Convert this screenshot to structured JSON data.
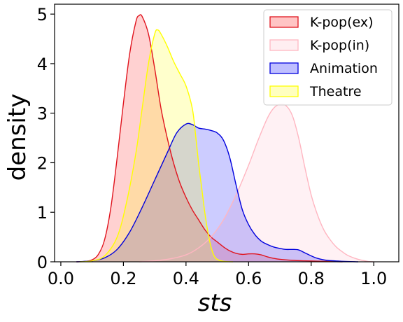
{
  "chart_data": {
    "type": "area",
    "xlabel": "sts",
    "ylabel": "density",
    "xlim": [
      -0.02,
      1.08
    ],
    "ylim": [
      0,
      5.2
    ],
    "xticks": [
      "0.0",
      "0.2",
      "0.4",
      "0.6",
      "0.8",
      "1.0"
    ],
    "yticks": [
      "0",
      "1",
      "2",
      "3",
      "4",
      "5"
    ],
    "grid": false,
    "legend_position": "top-right",
    "series": [
      {
        "name": "K-pop(ex)",
        "line_color": "#e0141e",
        "fill_color": "#ff0000",
        "fill_opacity": 0.18,
        "points": [
          [
            0.05,
            0
          ],
          [
            0.08,
            0.01
          ],
          [
            0.1,
            0.04
          ],
          [
            0.12,
            0.15
          ],
          [
            0.14,
            0.45
          ],
          [
            0.16,
            1.1
          ],
          [
            0.18,
            2.1
          ],
          [
            0.2,
            3.2
          ],
          [
            0.22,
            4.2
          ],
          [
            0.24,
            4.85
          ],
          [
            0.25,
            4.97
          ],
          [
            0.26,
            4.95
          ],
          [
            0.28,
            4.6
          ],
          [
            0.3,
            3.9
          ],
          [
            0.32,
            3.1
          ],
          [
            0.34,
            2.5
          ],
          [
            0.36,
            2.0
          ],
          [
            0.38,
            1.6
          ],
          [
            0.4,
            1.3
          ],
          [
            0.42,
            1.05
          ],
          [
            0.44,
            0.85
          ],
          [
            0.46,
            0.65
          ],
          [
            0.48,
            0.5
          ],
          [
            0.5,
            0.4
          ],
          [
            0.52,
            0.3
          ],
          [
            0.54,
            0.22
          ],
          [
            0.56,
            0.17
          ],
          [
            0.58,
            0.15
          ],
          [
            0.6,
            0.16
          ],
          [
            0.62,
            0.16
          ],
          [
            0.64,
            0.14
          ],
          [
            0.66,
            0.1
          ],
          [
            0.68,
            0.07
          ],
          [
            0.7,
            0.05
          ],
          [
            0.74,
            0.03
          ],
          [
            0.78,
            0.02
          ],
          [
            0.84,
            0.01
          ],
          [
            0.9,
            0
          ]
        ]
      },
      {
        "name": "K-pop(in)",
        "line_color": "#ffb6c1",
        "fill_color": "#ffc0cb",
        "fill_opacity": 0.22,
        "points": [
          [
            0.25,
            0
          ],
          [
            0.3,
            0.02
          ],
          [
            0.35,
            0.06
          ],
          [
            0.4,
            0.14
          ],
          [
            0.44,
            0.28
          ],
          [
            0.48,
            0.5
          ],
          [
            0.52,
            0.85
          ],
          [
            0.56,
            1.35
          ],
          [
            0.6,
            1.95
          ],
          [
            0.63,
            2.45
          ],
          [
            0.66,
            2.9
          ],
          [
            0.68,
            3.1
          ],
          [
            0.7,
            3.18
          ],
          [
            0.72,
            3.15
          ],
          [
            0.74,
            2.95
          ],
          [
            0.76,
            2.5
          ],
          [
            0.78,
            1.9
          ],
          [
            0.8,
            1.35
          ],
          [
            0.82,
            0.95
          ],
          [
            0.84,
            0.65
          ],
          [
            0.86,
            0.45
          ],
          [
            0.88,
            0.3
          ],
          [
            0.9,
            0.2
          ],
          [
            0.92,
            0.12
          ],
          [
            0.95,
            0.05
          ],
          [
            0.98,
            0.01
          ],
          [
            1.0,
            0
          ]
        ]
      },
      {
        "name": "Animation",
        "line_color": "#0000dd",
        "fill_color": "#0000ff",
        "fill_opacity": 0.2,
        "points": [
          [
            0.05,
            0
          ],
          [
            0.1,
            0.02
          ],
          [
            0.14,
            0.08
          ],
          [
            0.18,
            0.25
          ],
          [
            0.22,
            0.6
          ],
          [
            0.26,
            1.1
          ],
          [
            0.3,
            1.65
          ],
          [
            0.34,
            2.2
          ],
          [
            0.37,
            2.6
          ],
          [
            0.4,
            2.78
          ],
          [
            0.42,
            2.77
          ],
          [
            0.44,
            2.7
          ],
          [
            0.46,
            2.68
          ],
          [
            0.48,
            2.65
          ],
          [
            0.5,
            2.6
          ],
          [
            0.52,
            2.45
          ],
          [
            0.54,
            2.1
          ],
          [
            0.56,
            1.55
          ],
          [
            0.58,
            1.05
          ],
          [
            0.6,
            0.75
          ],
          [
            0.62,
            0.55
          ],
          [
            0.64,
            0.42
          ],
          [
            0.66,
            0.35
          ],
          [
            0.68,
            0.3
          ],
          [
            0.7,
            0.27
          ],
          [
            0.72,
            0.25
          ],
          [
            0.74,
            0.25
          ],
          [
            0.76,
            0.24
          ],
          [
            0.78,
            0.18
          ],
          [
            0.8,
            0.12
          ],
          [
            0.82,
            0.07
          ],
          [
            0.85,
            0.03
          ],
          [
            0.9,
            0.01
          ],
          [
            0.95,
            0
          ]
        ]
      },
      {
        "name": "Theatre",
        "line_color": "#ffff00",
        "fill_color": "#ffff00",
        "fill_opacity": 0.2,
        "points": [
          [
            0.06,
            0
          ],
          [
            0.1,
            0.02
          ],
          [
            0.14,
            0.12
          ],
          [
            0.18,
            0.5
          ],
          [
            0.21,
            1.2
          ],
          [
            0.24,
            2.2
          ],
          [
            0.26,
            3.1
          ],
          [
            0.28,
            4.0
          ],
          [
            0.3,
            4.6
          ],
          [
            0.31,
            4.68
          ],
          [
            0.32,
            4.6
          ],
          [
            0.34,
            4.35
          ],
          [
            0.36,
            4.05
          ],
          [
            0.38,
            3.8
          ],
          [
            0.4,
            3.55
          ],
          [
            0.42,
            3.1
          ],
          [
            0.43,
            2.6
          ],
          [
            0.44,
            2.0
          ],
          [
            0.45,
            1.5
          ],
          [
            0.46,
            1.0
          ],
          [
            0.47,
            0.6
          ],
          [
            0.48,
            0.3
          ],
          [
            0.49,
            0.12
          ],
          [
            0.5,
            0.05
          ],
          [
            0.52,
            0.01
          ],
          [
            0.55,
            0
          ]
        ]
      }
    ]
  }
}
